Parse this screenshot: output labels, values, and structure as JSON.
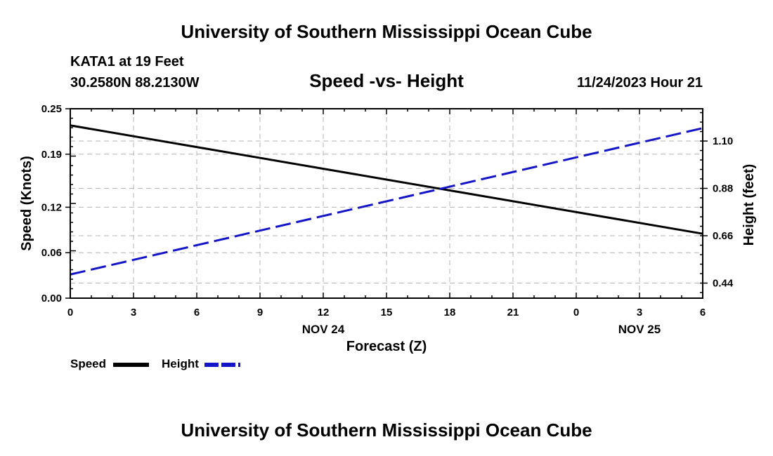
{
  "header": {
    "title": "University of Southern Mississippi Ocean Cube",
    "station": "KATA1 at 19 Feet",
    "coordinates": "30.2580N  88.2130W",
    "timestamp": "11/24/2023 Hour 21"
  },
  "footer": {
    "title": "University of Southern Mississippi Ocean Cube"
  },
  "legend": {
    "speed_label": "Speed",
    "height_label": "Height"
  },
  "colors": {
    "speed": "#000000",
    "height": "#1515c8",
    "grid": "#b4b4b4"
  },
  "chart_data": {
    "type": "line",
    "title": "Speed -vs- Height",
    "xlabel": "Forecast (Z)",
    "ylabel_left": "Speed (Knots)",
    "ylabel_right": "Height (feet)",
    "x": [
      0,
      3,
      6,
      9,
      12,
      15,
      18,
      21,
      24,
      27,
      30
    ],
    "x_tick_labels": [
      "0",
      "3",
      "6",
      "9",
      "12",
      "15",
      "18",
      "21",
      "0",
      "3",
      "6"
    ],
    "x_date_labels": [
      {
        "x": 12,
        "label": "NOV 24"
      },
      {
        "x": 27,
        "label": "NOV 25"
      }
    ],
    "xlim": [
      0,
      30
    ],
    "ylim_left": [
      0,
      0.25
    ],
    "left_ticks": [
      "0.00",
      "0.06",
      "0.12",
      "0.19",
      "0.25"
    ],
    "ylim_right": [
      0.37,
      1.25
    ],
    "right_ticks": [
      "0.44",
      "0.66",
      "0.88",
      "1.10"
    ],
    "grid": true,
    "series": [
      {
        "name": "Speed",
        "axis": "left",
        "style": "solid",
        "x": [
          0,
          30
        ],
        "values": [
          0.228,
          0.085
        ]
      },
      {
        "name": "Height",
        "axis": "right",
        "style": "dashed",
        "x": [
          0,
          30
        ],
        "values": [
          0.48,
          1.16
        ]
      }
    ]
  }
}
